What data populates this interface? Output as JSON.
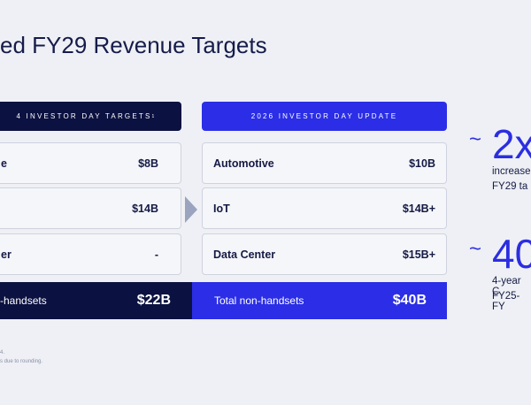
{
  "title": "ed FY29 Revenue Targets",
  "left": {
    "header": "4 INVESTOR DAY TARGETS",
    "header_note": "1",
    "rows": [
      {
        "label": "e",
        "value": "$8B"
      },
      {
        "value": "$14B"
      },
      {
        "label": "er",
        "value": "-"
      }
    ],
    "total": {
      "label": "-handsets",
      "value": "$22B"
    }
  },
  "right": {
    "header": "2026 INVESTOR DAY UPDATE",
    "rows": [
      {
        "label": "Automotive",
        "value": "$10B"
      },
      {
        "label": "IoT",
        "value": "$14B+"
      },
      {
        "label": "Data Center",
        "value": "$15B+"
      }
    ],
    "total": {
      "label": "Total non-handsets",
      "value": "$40B"
    }
  },
  "highlights": [
    {
      "prefix": "~",
      "figure": "2x",
      "lines": [
        "increase",
        "FY29 ta"
      ]
    },
    {
      "prefix": "~",
      "figure": "40",
      "lines": [
        "4-year C",
        "FY25-FY"
      ]
    }
  ],
  "footnotes": [
    "4.",
    "s due to rounding."
  ]
}
